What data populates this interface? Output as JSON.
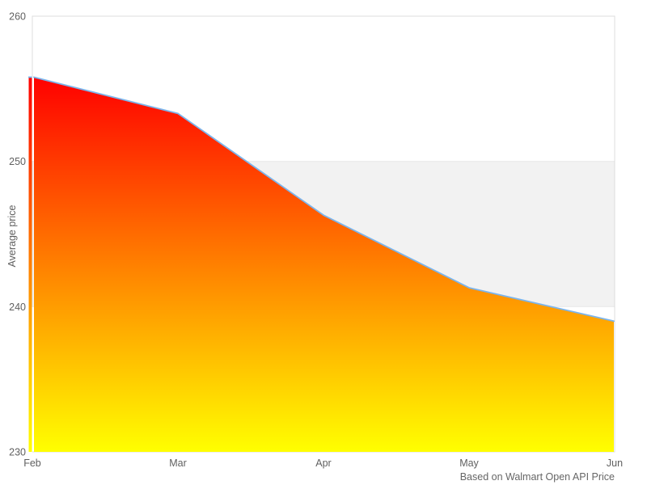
{
  "chart": {
    "chart_data": {
      "type": "area",
      "categories": [
        "Feb",
        "Mar",
        "Apr",
        "May",
        "Jun"
      ],
      "values": [
        255.8,
        253.3,
        246.3,
        241.3,
        239.0
      ],
      "series_name": "Average price",
      "title": "",
      "xlabel": "",
      "ylabel": "Average price",
      "ylim": [
        230,
        260
      ],
      "yticks": [
        230,
        240,
        250,
        260
      ],
      "grid": false,
      "legend": "none",
      "plot_band": {
        "from": 240,
        "to": 250,
        "color": "#f2f2f2",
        "border_color": "#e8e8e8"
      },
      "caption": "Based on Walmart Open API Price",
      "colors": {
        "line": "#7cb5ec",
        "area_gradient": [
          "#ff0000",
          "#ff8000",
          "#ffff00"
        ],
        "plot_border": "#dcdcdc",
        "tick_text": "#606060",
        "caption_text": "#666666",
        "background": "#ffffff"
      }
    }
  }
}
